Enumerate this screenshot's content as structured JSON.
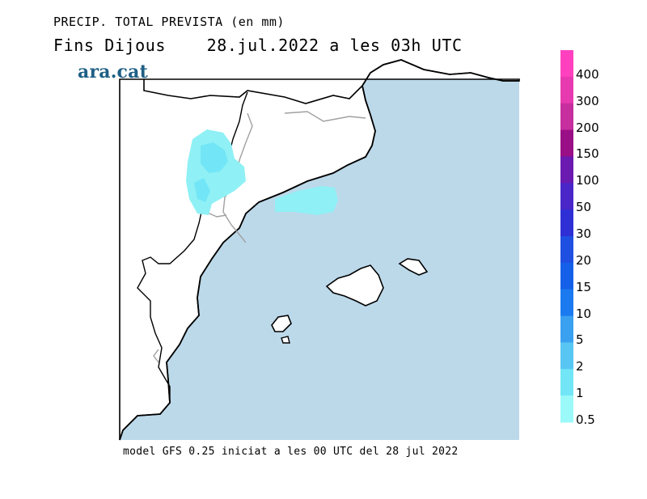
{
  "title": {
    "line1": "PRECIP. TOTAL PREVISTA (en mm)",
    "line2": "Fins Dijous    28.jul.2022 a les 03h UTC"
  },
  "brand": "ara.cat",
  "footer": "model GFS 0.25 iniciat a les 00 UTC del 28 jul 2022",
  "legend": {
    "labels": [
      "400",
      "300",
      "200",
      "150",
      "100",
      "50",
      "30",
      "20",
      "15",
      "10",
      "5",
      "2",
      "1",
      "0.5"
    ],
    "colors": [
      "#ff40bf",
      "#e83ab0",
      "#c72e9e",
      "#9a0e86",
      "#6a1ab0",
      "#4a26c8",
      "#2f2fd6",
      "#1f4fe0",
      "#1560e8",
      "#1b7af0",
      "#3aa0f0",
      "#58c6f2",
      "#72e6f6",
      "#9cf9f9"
    ]
  },
  "colors": {
    "sea": "#bcd9ea",
    "land": "#ffffff",
    "coastline": "#000000",
    "border": "#a0a0a0",
    "precip": "#8ff0f5"
  }
}
